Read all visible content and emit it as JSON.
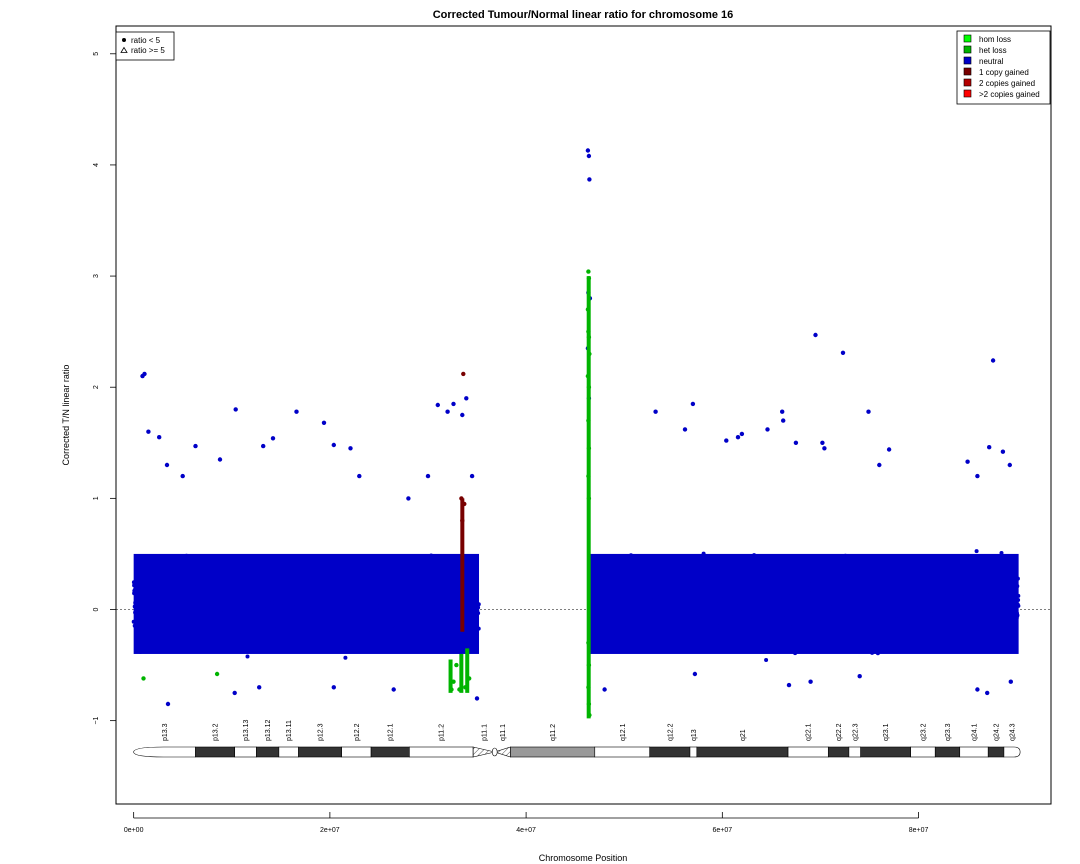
{
  "chart_data": {
    "type": "scatter",
    "title": "Corrected Tumour/Normal linear ratio for chromosome  16",
    "xlabel": "Chromosome Position",
    "ylabel": "Corrected T/N linear ratio",
    "xlim": [
      -1800000,
      93500000
    ],
    "ylim": [
      -1.75,
      5.25
    ],
    "x_ticks": [
      0,
      20000000,
      40000000,
      60000000,
      80000000
    ],
    "x_tick_labels": [
      "0e+00",
      "2e+07",
      "4e+07",
      "6e+07",
      "8e+07"
    ],
    "y_ticks": [
      -1,
      0,
      1,
      2,
      3,
      4,
      5
    ],
    "y_tick_labels": [
      "−1",
      "0",
      "1",
      "2",
      "3",
      "4",
      "5"
    ],
    "reference_line_y": 0,
    "grid": false,
    "legend_states": {
      "position": "top-right",
      "items": [
        {
          "label": "hom loss",
          "color": "#00ff00"
        },
        {
          "label": "het loss",
          "color": "#00b400"
        },
        {
          "label": "neutral",
          "color": "#0000c8"
        },
        {
          "label": "1 copy gained",
          "color": "#780000"
        },
        {
          "label": "2 copies gained",
          "color": "#b40000"
        },
        {
          "label": ">2 copies gained",
          "color": "#ff0000"
        }
      ]
    },
    "legend_symbols": {
      "position": "top-left",
      "items": [
        {
          "label": "ratio < 5",
          "symbol": "dot"
        },
        {
          "label": "ratio >= 5",
          "symbol": "triangle"
        }
      ]
    },
    "series": [
      {
        "name": "neutral",
        "color": "#0000c8",
        "bands": [
          {
            "x": [
              0,
              35200000
            ],
            "y": [
              -0.4,
              0.5
            ]
          },
          {
            "x": [
              46500000,
              90200000
            ],
            "y": [
              -0.4,
              0.5
            ]
          }
        ],
        "points": [
          [
            900000,
            2.1
          ],
          [
            1100000,
            2.12
          ],
          [
            1500000,
            1.6
          ],
          [
            2600000,
            1.55
          ],
          [
            3400000,
            1.3
          ],
          [
            5000000,
            1.2
          ],
          [
            6300000,
            1.47
          ],
          [
            8800000,
            1.35
          ],
          [
            10400000,
            1.8
          ],
          [
            13200000,
            1.47
          ],
          [
            14200000,
            1.54
          ],
          [
            16600000,
            1.78
          ],
          [
            19400000,
            1.68
          ],
          [
            20400000,
            1.48
          ],
          [
            22100000,
            1.45
          ],
          [
            23000000,
            1.2
          ],
          [
            28000000,
            1.0
          ],
          [
            30000000,
            1.2
          ],
          [
            31000000,
            1.84
          ],
          [
            32000000,
            1.78
          ],
          [
            32600000,
            1.85
          ],
          [
            33500000,
            1.75
          ],
          [
            33900000,
            1.9
          ],
          [
            34500000,
            1.2
          ],
          [
            46300000,
            4.13
          ],
          [
            46400000,
            4.08
          ],
          [
            46450000,
            3.87
          ],
          [
            46350000,
            2.85
          ],
          [
            46500000,
            2.8
          ],
          [
            46300000,
            2.35
          ],
          [
            46400000,
            1.9
          ],
          [
            53200000,
            1.78
          ],
          [
            56200000,
            1.62
          ],
          [
            57000000,
            1.85
          ],
          [
            60400000,
            1.52
          ],
          [
            61600000,
            1.55
          ],
          [
            62000000,
            1.58
          ],
          [
            64600000,
            1.62
          ],
          [
            66100000,
            1.78
          ],
          [
            66200000,
            1.7
          ],
          [
            67500000,
            1.5
          ],
          [
            69500000,
            2.47
          ],
          [
            70200000,
            1.5
          ],
          [
            70400000,
            1.45
          ],
          [
            72300000,
            2.31
          ],
          [
            74900000,
            1.78
          ],
          [
            76000000,
            1.3
          ],
          [
            77000000,
            1.44
          ],
          [
            85000000,
            1.33
          ],
          [
            86000000,
            1.2
          ],
          [
            87200000,
            1.46
          ],
          [
            87600000,
            2.24
          ],
          [
            88600000,
            1.42
          ],
          [
            89300000,
            1.3
          ],
          [
            3500000,
            -0.85
          ],
          [
            10300000,
            -0.75
          ],
          [
            12800000,
            -0.7
          ],
          [
            20400000,
            -0.7
          ],
          [
            26500000,
            -0.72
          ],
          [
            35000000,
            -0.8
          ],
          [
            48000000,
            -0.72
          ],
          [
            57200000,
            -0.58
          ],
          [
            66800000,
            -0.68
          ],
          [
            69000000,
            -0.65
          ],
          [
            74000000,
            -0.6
          ],
          [
            86000000,
            -0.72
          ],
          [
            87000000,
            -0.75
          ],
          [
            89400000,
            -0.65
          ]
        ]
      },
      {
        "name": "het loss",
        "color": "#00b400",
        "points": [
          [
            46350000,
            3.04
          ],
          [
            46400000,
            2.98
          ],
          [
            46300000,
            2.7
          ],
          [
            46350000,
            2.5
          ],
          [
            46400000,
            2.45
          ],
          [
            46450000,
            2.3
          ],
          [
            46300000,
            2.1
          ],
          [
            46400000,
            2.0
          ],
          [
            46350000,
            1.7
          ],
          [
            46400000,
            1.45
          ],
          [
            46350000,
            1.2
          ],
          [
            46400000,
            1.0
          ],
          [
            46350000,
            -0.3
          ],
          [
            46400000,
            -0.5
          ],
          [
            46350000,
            -0.7
          ],
          [
            46400000,
            -0.85
          ],
          [
            46450000,
            -0.95
          ],
          [
            1000000,
            -0.62
          ],
          [
            8500000,
            -0.58
          ],
          [
            32400000,
            -0.72
          ],
          [
            32600000,
            -0.65
          ],
          [
            33200000,
            -0.72
          ],
          [
            33800000,
            -0.7
          ],
          [
            34200000,
            -0.62
          ],
          [
            32900000,
            -0.5
          ]
        ],
        "segments": [
          {
            "x": 46380000,
            "y": [
              -0.98,
              3.0
            ]
          },
          {
            "x": 32300000,
            "y": [
              -0.75,
              -0.45
            ]
          },
          {
            "x": 33400000,
            "y": [
              -0.75,
              -0.4
            ]
          },
          {
            "x": 34000000,
            "y": [
              -0.75,
              -0.35
            ]
          }
        ]
      },
      {
        "name": "1 copy gained",
        "color": "#780000",
        "points": [
          [
            33600000,
            2.12
          ],
          [
            33500000,
            0.8
          ],
          [
            33400000,
            1.0
          ],
          [
            33700000,
            0.95
          ]
        ],
        "segments": [
          {
            "x": 33500000,
            "y": [
              -0.2,
              1.0
            ]
          }
        ]
      }
    ],
    "ideogram": {
      "bands": [
        {
          "name": "p13.3",
          "start": 0,
          "end": 6300000,
          "stain": "gneg"
        },
        {
          "name": "p13.2",
          "start": 6300000,
          "end": 10300000,
          "stain": "gpos50"
        },
        {
          "name": "p13.13",
          "start": 10300000,
          "end": 12500000,
          "stain": "gneg"
        },
        {
          "name": "p13.12",
          "start": 12500000,
          "end": 14800000,
          "stain": "gpos50"
        },
        {
          "name": "p13.11",
          "start": 14800000,
          "end": 16800000,
          "stain": "gneg"
        },
        {
          "name": "p12.3",
          "start": 16800000,
          "end": 21200000,
          "stain": "gpos50"
        },
        {
          "name": "p12.2",
          "start": 21200000,
          "end": 24200000,
          "stain": "gneg"
        },
        {
          "name": "p12.1",
          "start": 24200000,
          "end": 28100000,
          "stain": "gpos50"
        },
        {
          "name": "p11.2",
          "start": 28100000,
          "end": 34600000,
          "stain": "gneg"
        },
        {
          "name": "p11.1",
          "start": 34600000,
          "end": 36800000,
          "stain": "acen"
        },
        {
          "name": "q11.1",
          "start": 36800000,
          "end": 38400000,
          "stain": "acen"
        },
        {
          "name": "q11.2",
          "start": 38400000,
          "end": 47000000,
          "stain": "gvar"
        },
        {
          "name": "q12.1",
          "start": 47000000,
          "end": 52600000,
          "stain": "gneg"
        },
        {
          "name": "q12.2",
          "start": 52600000,
          "end": 56700000,
          "stain": "gpos50"
        },
        {
          "name": "q13",
          "start": 56700000,
          "end": 57400000,
          "stain": "gneg"
        },
        {
          "name": "q21",
          "start": 57400000,
          "end": 66700000,
          "stain": "gpos50"
        },
        {
          "name": "q22.1",
          "start": 66700000,
          "end": 70800000,
          "stain": "gneg"
        },
        {
          "name": "q22.2",
          "start": 70800000,
          "end": 72900000,
          "stain": "gpos50"
        },
        {
          "name": "q22.3",
          "start": 72900000,
          "end": 74100000,
          "stain": "gneg"
        },
        {
          "name": "q23.1",
          "start": 74100000,
          "end": 79200000,
          "stain": "gpos50"
        },
        {
          "name": "q23.2",
          "start": 79200000,
          "end": 81700000,
          "stain": "gneg"
        },
        {
          "name": "q23.3",
          "start": 81700000,
          "end": 84200000,
          "stain": "gpos50"
        },
        {
          "name": "q24.1",
          "start": 84200000,
          "end": 87100000,
          "stain": "gneg"
        },
        {
          "name": "q24.2",
          "start": 87100000,
          "end": 88700000,
          "stain": "gpos50"
        },
        {
          "name": "q24.3",
          "start": 88700000,
          "end": 90354753,
          "stain": "gneg"
        }
      ]
    }
  }
}
